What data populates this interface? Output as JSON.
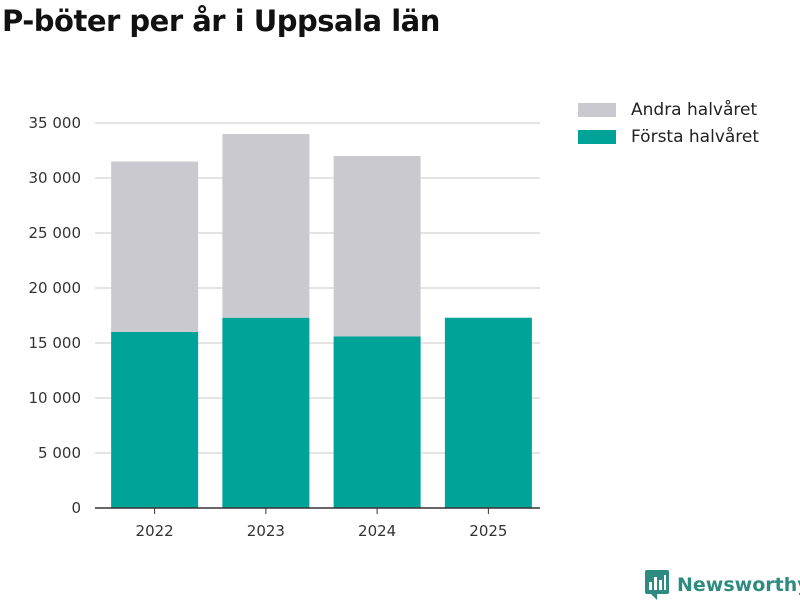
{
  "page": {
    "title": "P-böter per år i Uppsala län"
  },
  "legend": [
    {
      "label": "Andra halvåret",
      "color": "#c9c9cf"
    },
    {
      "label": "Första halvåret",
      "color": "#00a398"
    }
  ],
  "brand": {
    "name": "Newsworthy",
    "color": "#2e8b80"
  },
  "chart_data": {
    "type": "bar",
    "stacked": true,
    "title": "P-böter per år i Uppsala län",
    "xlabel": "",
    "ylabel": "",
    "categories": [
      "2022",
      "2023",
      "2024",
      "2025"
    ],
    "series": [
      {
        "name": "Första halvåret",
        "color": "#00a398",
        "values": [
          16000,
          17300,
          15600,
          17300
        ]
      },
      {
        "name": "Andra halvåret",
        "color": "#c9c9cf",
        "values": [
          15500,
          16700,
          16400,
          0
        ]
      }
    ],
    "ylim": [
      0,
      35000
    ],
    "yticks": [
      0,
      5000,
      10000,
      15000,
      20000,
      25000,
      30000,
      35000
    ],
    "ytick_labels": [
      "0",
      "5 000",
      "10 000",
      "15 000",
      "20 000",
      "25 000",
      "30 000",
      "35 000"
    ],
    "grid": true,
    "legend_position": "top-right"
  }
}
